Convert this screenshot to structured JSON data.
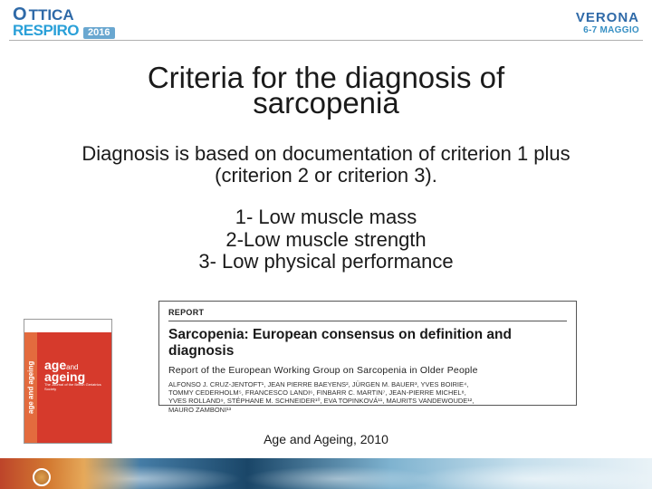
{
  "header": {
    "logo_part1": "O",
    "logo_part2": "TTICA",
    "logo_part3": "RESPIRO",
    "logo_year": "2016",
    "city": "VERONA",
    "dates": "6-7 MAGGIO"
  },
  "title": {
    "line1": "Criteria for the diagnosis of",
    "line2": "sarcopenia"
  },
  "subtitle": {
    "line1": "Diagnosis is based on documentation of criterion 1 plus",
    "line2": "(criterion 2 or criterion 3)."
  },
  "criteria": {
    "c1": "1- Low muscle mass",
    "c2": "2-Low muscle strength",
    "c3": "3- Low physical performance"
  },
  "journal": {
    "spine": "age and ageing",
    "brand1": "age",
    "brand1_sub": "and",
    "brand2": "ageing",
    "tagline": "The Journal of the British Geriatrics Society"
  },
  "report": {
    "label": "REPORT",
    "title": "Sarcopenia: European consensus on definition and diagnosis",
    "subtitle": "Report of the European Working Group on Sarcopenia in Older People",
    "authors_l1": "ALFONSO J. CRUZ-JENTOFT¹, JEAN PIERRE BAEYENS², JÜRGEN M. BAUER³, YVES BOIRIE⁴,",
    "authors_l2": "TOMMY CEDERHOLM⁵, FRANCESCO LANDI⁶, FINBARR C. MARTIN⁷, JEAN-PIERRE MICHEL⁸,",
    "authors_l3": "YVES ROLLAND⁹, STÉPHANE M. SCHNEIDER¹⁰, EVA TOPINKOVÁ¹¹, MAURITS VANDEWOUDE¹²,",
    "authors_l4": "MAURO ZAMBONI¹³"
  },
  "citation": "Age and Ageing, 2010",
  "colors": {
    "accent_blue": "#2f6aa8",
    "light_blue": "#2aa0d8",
    "journal_red": "#d63a2c",
    "journal_orange": "#e36b3e"
  }
}
